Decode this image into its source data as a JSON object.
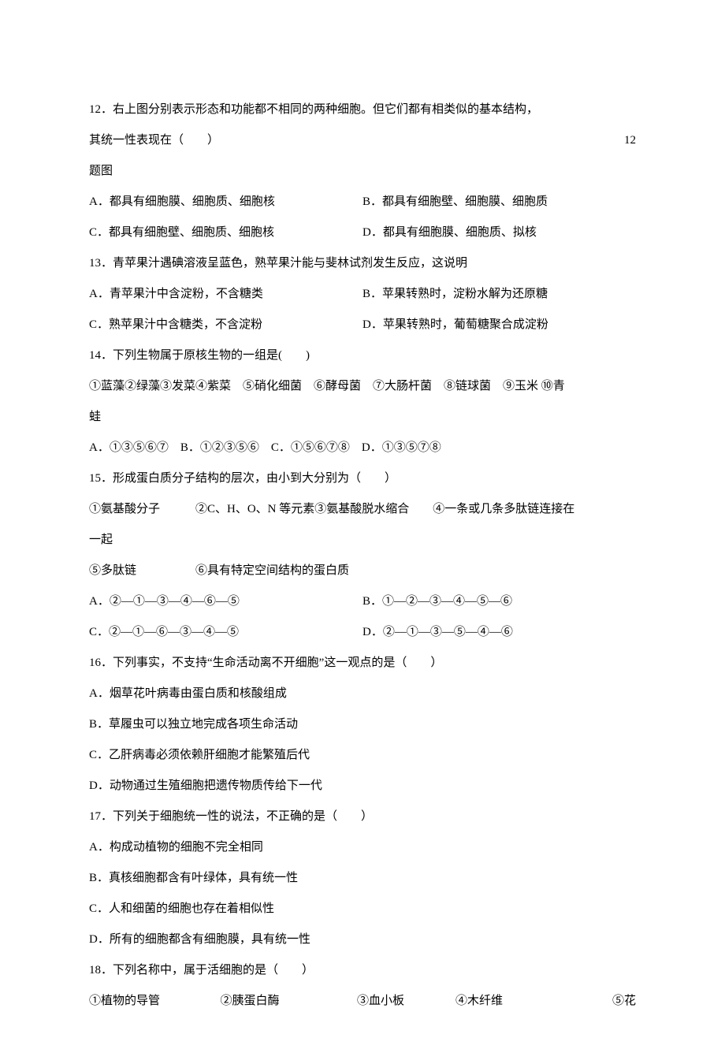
{
  "page": {
    "background_color": "#ffffff",
    "text_color": "#000000",
    "font_family": "SimSun",
    "base_fontsize": 15,
    "line_height": 2.6
  },
  "q12": {
    "stem_l1": "12．右上图分别表示形态和功能都不相同的两种细胞。但它们都有相类似的基本结构，",
    "stem_l2_left": "其统一性表现在（　　）",
    "stem_l2_right": "12",
    "stem_l3": "题图",
    "optA": "A．都具有细胞膜、细胞质、细胞核",
    "optB": "B．都具有细胞壁、细胞膜、细胞质",
    "optC": "C．都具有细胞壁、细胞质、细胞核",
    "optD": "D．都具有细胞膜、细胞质、拟核"
  },
  "q13": {
    "stem": "13．青苹果汁遇碘溶液呈蓝色，熟苹果汁能与斐林试剂发生反应，这说明",
    "optA": "A．青苹果汁中含淀粉，不含糖类",
    "optB": "B．苹果转熟时，淀粉水解为还原糖",
    "optC": "C．熟苹果汁中含糖类，不含淀粉",
    "optD": "D．苹果转熟时，葡萄糖聚合成淀粉"
  },
  "q14": {
    "stem": "14．下列生物属于原核生物的一组是(　　)",
    "items_l1": "①蓝藻②绿藻③发菜④紫菜　⑤硝化细菌　⑥酵母菌　⑦大肠杆菌　⑧链球菌　⑨玉米 ⑩青",
    "items_l2": "蛙",
    "optA": "A．①③⑤⑥⑦",
    "optB": "B．①②③⑤⑥",
    "optC": "C．①⑤⑥⑦⑧",
    "optD": "D．①③⑤⑦⑧"
  },
  "q15": {
    "stem": "15．形成蛋白质分子结构的层次，由小到大分别为（　　）",
    "items_l1": "①氨基酸分子　　　②C、H、O、N 等元素③氨基酸脱水缩合　　④一条或几条多肽链连接在",
    "items_l2": "一起",
    "items_l3": "⑤多肽链　　　　　⑥具有特定空间结构的蛋白质",
    "optA": "A．②—①—③—④—⑥—⑤",
    "optB": "B．①—②—③—④—⑤—⑥",
    "optC": "C．②—①—⑥—③—④—⑤",
    "optD": "D．②—①—③—⑤—④—⑥"
  },
  "q16": {
    "stem": "16．下列事实，不支持“生命活动离不开细胞”这一观点的是（　　）",
    "optA": "A．烟草花叶病毒由蛋白质和核酸组成",
    "optB": "B．草履虫可以独立地完成各项生命活动",
    "optC": "C．乙肝病毒必须依赖肝细胞才能繁殖后代",
    "optD": "D．动物通过生殖细胞把遗传物质传给下一代"
  },
  "q17": {
    "stem": "17．下列关于细胞统一性的说法，不正确的是（　　）",
    "optA": "A．构成动植物的细胞不完全相同",
    "optB": "B．真核细胞都含有叶绿体，具有统一性",
    "optC": "C．人和细菌的细胞也存在着相似性",
    "optD": "D．所有的细胞都含有细胞膜，具有统一性"
  },
  "q18": {
    "stem": "18．下列名称中，属于活细胞的是（　　）",
    "c1": "①植物的导管",
    "c2": "②胰蛋白酶",
    "c3": "③血小板",
    "c4": "④木纤维",
    "c5": "⑤花"
  }
}
